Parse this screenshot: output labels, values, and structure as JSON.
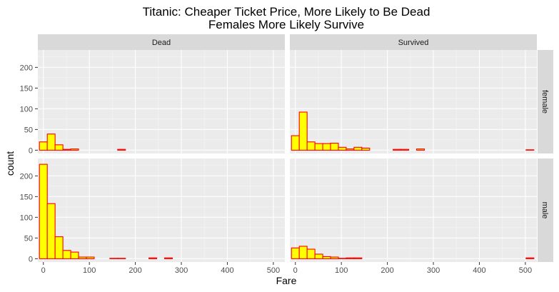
{
  "chart_data": {
    "type": "bar",
    "title_line1": "Titanic: Cheaper Ticket Price, More Likely to Be Dead",
    "title_line2": "Females More Likely Survive",
    "xlabel": "Fare",
    "ylabel": "count",
    "xlim": [
      -12,
      525
    ],
    "ylim": [
      -8,
      242
    ],
    "x_ticks": [
      0,
      100,
      200,
      300,
      400,
      500
    ],
    "y_ticks": [
      0,
      50,
      100,
      150,
      200
    ],
    "bin_width": 17,
    "bin_starts": [
      -8.5,
      8.5,
      25.5,
      42.5,
      59.5,
      76.5,
      93.5,
      110.5,
      127.5,
      144.5,
      161.5,
      178.5,
      195.5,
      212.5,
      229.5,
      246.5,
      263.5,
      280.5,
      297.5,
      314.5,
      331.5,
      348.5,
      365.5,
      382.5,
      399.5,
      416.5,
      433.5,
      450.5,
      467.5,
      484.5,
      501.5
    ],
    "col_strips": [
      "Dead",
      "Survived"
    ],
    "row_strips": [
      "female",
      "male"
    ],
    "fill_color": "#ffff00",
    "stroke_color": "#ff0000",
    "panels": [
      {
        "col": "Dead",
        "row": "female",
        "values": [
          20,
          39,
          13,
          2,
          3,
          0,
          0,
          0,
          0,
          0,
          2,
          0,
          0,
          0,
          0,
          0,
          0,
          0,
          0,
          0,
          0,
          0,
          0,
          0,
          0,
          0,
          0,
          0,
          0,
          0,
          0
        ]
      },
      {
        "col": "Survived",
        "row": "female",
        "values": [
          35,
          92,
          20,
          16,
          16,
          17,
          7,
          3,
          7,
          5,
          0,
          0,
          0,
          2,
          2,
          0,
          3,
          0,
          0,
          0,
          0,
          0,
          0,
          0,
          0,
          0,
          0,
          0,
          0,
          0,
          1
        ]
      },
      {
        "col": "Dead",
        "row": "male",
        "values": [
          228,
          133,
          53,
          20,
          16,
          4,
          4,
          0,
          0,
          1,
          1,
          0,
          0,
          0,
          2,
          0,
          2,
          0,
          0,
          0,
          0,
          0,
          0,
          0,
          0,
          0,
          0,
          0,
          0,
          0,
          0
        ]
      },
      {
        "col": "Survived",
        "row": "male",
        "values": [
          26,
          30,
          23,
          11,
          5,
          4,
          1,
          2,
          2,
          0,
          0,
          0,
          0,
          0,
          0,
          0,
          0,
          0,
          0,
          0,
          0,
          0,
          0,
          0,
          0,
          0,
          0,
          0,
          0,
          0,
          2
        ]
      }
    ]
  }
}
